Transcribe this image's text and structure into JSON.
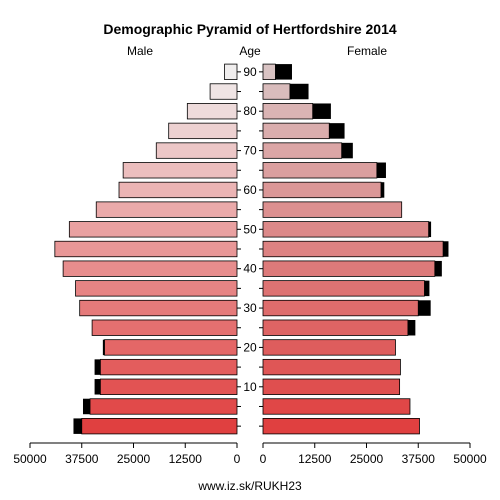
{
  "chart_data": {
    "type": "bar",
    "title": "Demographic Pyramid of Hertfordshire 2014",
    "left_label": "Male",
    "center_label": "Age",
    "right_label": "Female",
    "source": "www.iz.sk/RUKH23",
    "xlim": [
      0,
      50000
    ],
    "x_ticks": [
      50000,
      37500,
      25000,
      12500,
      0
    ],
    "x_ticks_right": [
      0,
      12500,
      25000,
      37500,
      50000
    ],
    "age_ticks": [
      10,
      20,
      30,
      40,
      50,
      60,
      70,
      80,
      90
    ],
    "age_groups": [
      "0-4",
      "5-9",
      "10-14",
      "15-19",
      "20-24",
      "25-29",
      "30-34",
      "35-39",
      "40-44",
      "45-49",
      "50-54",
      "55-59",
      "60-64",
      "65-69",
      "70-74",
      "75-79",
      "80-84",
      "85-89",
      "90+"
    ],
    "male": [
      37500,
      35500,
      33000,
      33000,
      32000,
      35000,
      38000,
      39000,
      42000,
      44000,
      40500,
      34000,
      28500,
      27500,
      19500,
      16500,
      12000,
      6500,
      3000
    ],
    "female": [
      37800,
      35500,
      33000,
      33200,
      32000,
      35000,
      37500,
      39000,
      41500,
      43500,
      40000,
      33500,
      28500,
      27500,
      19000,
      16000,
      12000,
      6500,
      3000
    ],
    "male_excess": [
      2000,
      1700,
      1400,
      1400,
      400,
      0,
      0,
      0,
      0,
      0,
      0,
      0,
      0,
      0,
      0,
      0,
      0,
      0,
      0
    ],
    "female_excess": [
      0,
      0,
      0,
      0,
      0,
      1800,
      3000,
      1200,
      1700,
      1300,
      600,
      0,
      800,
      2200,
      2700,
      3700,
      4400,
      4500,
      4000
    ],
    "colors": {
      "male_young": "#e04040",
      "male_old": "#f0eeee",
      "female_young": "#e04040",
      "female_old": "#d9c3c3",
      "excess": "#000000"
    }
  }
}
